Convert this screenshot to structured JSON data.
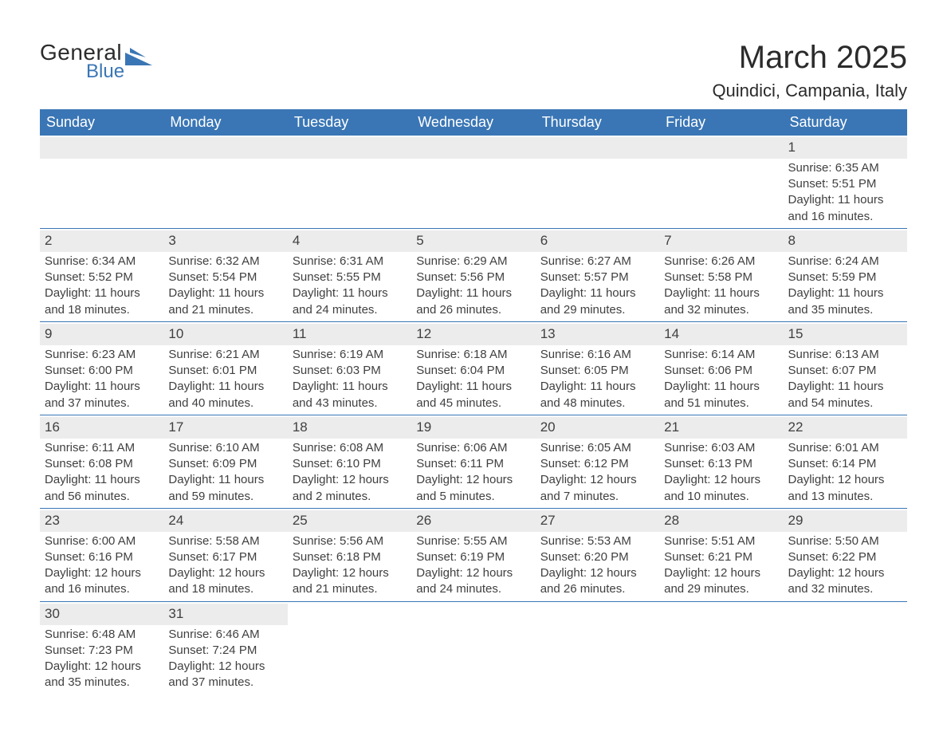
{
  "brand": {
    "word1": "General",
    "word2": "Blue",
    "accent_color": "#3a76b5"
  },
  "title": "March 2025",
  "location": "Quindici, Campania, Italy",
  "colors": {
    "header_bg": "#3a76b5",
    "header_text": "#ffffff",
    "band_bg": "#ececec",
    "row_divider": "#3a76b5",
    "body_text": "#404040",
    "page_bg": "#ffffff"
  },
  "typography": {
    "title_fontsize": 40,
    "location_fontsize": 22,
    "dow_fontsize": 18,
    "cell_fontsize": 15
  },
  "days_of_week": [
    "Sunday",
    "Monday",
    "Tuesday",
    "Wednesday",
    "Thursday",
    "Friday",
    "Saturday"
  ],
  "weeks": [
    [
      null,
      null,
      null,
      null,
      null,
      null,
      {
        "day": "1",
        "sunrise": "Sunrise: 6:35 AM",
        "sunset": "Sunset: 5:51 PM",
        "daylight": "Daylight: 11 hours and 16 minutes."
      }
    ],
    [
      {
        "day": "2",
        "sunrise": "Sunrise: 6:34 AM",
        "sunset": "Sunset: 5:52 PM",
        "daylight": "Daylight: 11 hours and 18 minutes."
      },
      {
        "day": "3",
        "sunrise": "Sunrise: 6:32 AM",
        "sunset": "Sunset: 5:54 PM",
        "daylight": "Daylight: 11 hours and 21 minutes."
      },
      {
        "day": "4",
        "sunrise": "Sunrise: 6:31 AM",
        "sunset": "Sunset: 5:55 PM",
        "daylight": "Daylight: 11 hours and 24 minutes."
      },
      {
        "day": "5",
        "sunrise": "Sunrise: 6:29 AM",
        "sunset": "Sunset: 5:56 PM",
        "daylight": "Daylight: 11 hours and 26 minutes."
      },
      {
        "day": "6",
        "sunrise": "Sunrise: 6:27 AM",
        "sunset": "Sunset: 5:57 PM",
        "daylight": "Daylight: 11 hours and 29 minutes."
      },
      {
        "day": "7",
        "sunrise": "Sunrise: 6:26 AM",
        "sunset": "Sunset: 5:58 PM",
        "daylight": "Daylight: 11 hours and 32 minutes."
      },
      {
        "day": "8",
        "sunrise": "Sunrise: 6:24 AM",
        "sunset": "Sunset: 5:59 PM",
        "daylight": "Daylight: 11 hours and 35 minutes."
      }
    ],
    [
      {
        "day": "9",
        "sunrise": "Sunrise: 6:23 AM",
        "sunset": "Sunset: 6:00 PM",
        "daylight": "Daylight: 11 hours and 37 minutes."
      },
      {
        "day": "10",
        "sunrise": "Sunrise: 6:21 AM",
        "sunset": "Sunset: 6:01 PM",
        "daylight": "Daylight: 11 hours and 40 minutes."
      },
      {
        "day": "11",
        "sunrise": "Sunrise: 6:19 AM",
        "sunset": "Sunset: 6:03 PM",
        "daylight": "Daylight: 11 hours and 43 minutes."
      },
      {
        "day": "12",
        "sunrise": "Sunrise: 6:18 AM",
        "sunset": "Sunset: 6:04 PM",
        "daylight": "Daylight: 11 hours and 45 minutes."
      },
      {
        "day": "13",
        "sunrise": "Sunrise: 6:16 AM",
        "sunset": "Sunset: 6:05 PM",
        "daylight": "Daylight: 11 hours and 48 minutes."
      },
      {
        "day": "14",
        "sunrise": "Sunrise: 6:14 AM",
        "sunset": "Sunset: 6:06 PM",
        "daylight": "Daylight: 11 hours and 51 minutes."
      },
      {
        "day": "15",
        "sunrise": "Sunrise: 6:13 AM",
        "sunset": "Sunset: 6:07 PM",
        "daylight": "Daylight: 11 hours and 54 minutes."
      }
    ],
    [
      {
        "day": "16",
        "sunrise": "Sunrise: 6:11 AM",
        "sunset": "Sunset: 6:08 PM",
        "daylight": "Daylight: 11 hours and 56 minutes."
      },
      {
        "day": "17",
        "sunrise": "Sunrise: 6:10 AM",
        "sunset": "Sunset: 6:09 PM",
        "daylight": "Daylight: 11 hours and 59 minutes."
      },
      {
        "day": "18",
        "sunrise": "Sunrise: 6:08 AM",
        "sunset": "Sunset: 6:10 PM",
        "daylight": "Daylight: 12 hours and 2 minutes."
      },
      {
        "day": "19",
        "sunrise": "Sunrise: 6:06 AM",
        "sunset": "Sunset: 6:11 PM",
        "daylight": "Daylight: 12 hours and 5 minutes."
      },
      {
        "day": "20",
        "sunrise": "Sunrise: 6:05 AM",
        "sunset": "Sunset: 6:12 PM",
        "daylight": "Daylight: 12 hours and 7 minutes."
      },
      {
        "day": "21",
        "sunrise": "Sunrise: 6:03 AM",
        "sunset": "Sunset: 6:13 PM",
        "daylight": "Daylight: 12 hours and 10 minutes."
      },
      {
        "day": "22",
        "sunrise": "Sunrise: 6:01 AM",
        "sunset": "Sunset: 6:14 PM",
        "daylight": "Daylight: 12 hours and 13 minutes."
      }
    ],
    [
      {
        "day": "23",
        "sunrise": "Sunrise: 6:00 AM",
        "sunset": "Sunset: 6:16 PM",
        "daylight": "Daylight: 12 hours and 16 minutes."
      },
      {
        "day": "24",
        "sunrise": "Sunrise: 5:58 AM",
        "sunset": "Sunset: 6:17 PM",
        "daylight": "Daylight: 12 hours and 18 minutes."
      },
      {
        "day": "25",
        "sunrise": "Sunrise: 5:56 AM",
        "sunset": "Sunset: 6:18 PM",
        "daylight": "Daylight: 12 hours and 21 minutes."
      },
      {
        "day": "26",
        "sunrise": "Sunrise: 5:55 AM",
        "sunset": "Sunset: 6:19 PM",
        "daylight": "Daylight: 12 hours and 24 minutes."
      },
      {
        "day": "27",
        "sunrise": "Sunrise: 5:53 AM",
        "sunset": "Sunset: 6:20 PM",
        "daylight": "Daylight: 12 hours and 26 minutes."
      },
      {
        "day": "28",
        "sunrise": "Sunrise: 5:51 AM",
        "sunset": "Sunset: 6:21 PM",
        "daylight": "Daylight: 12 hours and 29 minutes."
      },
      {
        "day": "29",
        "sunrise": "Sunrise: 5:50 AM",
        "sunset": "Sunset: 6:22 PM",
        "daylight": "Daylight: 12 hours and 32 minutes."
      }
    ],
    [
      {
        "day": "30",
        "sunrise": "Sunrise: 6:48 AM",
        "sunset": "Sunset: 7:23 PM",
        "daylight": "Daylight: 12 hours and 35 minutes."
      },
      {
        "day": "31",
        "sunrise": "Sunrise: 6:46 AM",
        "sunset": "Sunset: 7:24 PM",
        "daylight": "Daylight: 12 hours and 37 minutes."
      },
      null,
      null,
      null,
      null,
      null
    ]
  ]
}
